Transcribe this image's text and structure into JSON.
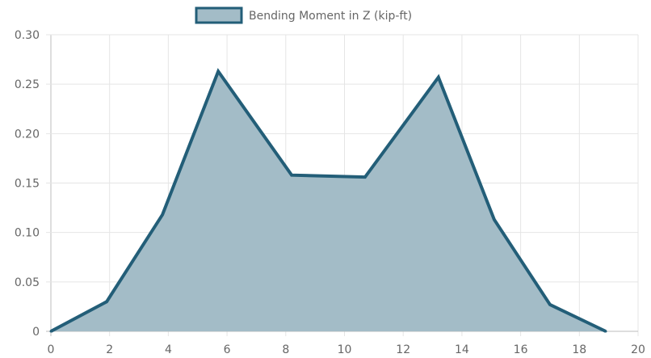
{
  "chart_data": {
    "type": "area",
    "title": "",
    "xlabel": "",
    "ylabel": "",
    "xlim": [
      0,
      20
    ],
    "ylim": [
      0,
      0.3
    ],
    "grid": true,
    "legend_position": "top-center",
    "x_ticks": [
      "0",
      "2",
      "4",
      "6",
      "8",
      "10",
      "12",
      "14",
      "16",
      "18",
      "20"
    ],
    "y_ticks": [
      "0",
      "0.05",
      "0.10",
      "0.15",
      "0.20",
      "0.25",
      "0.30"
    ],
    "series": [
      {
        "name": "Bending Moment in Z (kip-ft)",
        "line_color": "#235e78",
        "fill_color": "#a3bcc7",
        "points": [
          {
            "x": 0,
            "y": 0
          },
          {
            "x": 1.9,
            "y": 0.03
          },
          {
            "x": 3.8,
            "y": 0.118
          },
          {
            "x": 5.7,
            "y": 0.263
          },
          {
            "x": 8.2,
            "y": 0.158
          },
          {
            "x": 10.7,
            "y": 0.156
          },
          {
            "x": 13.2,
            "y": 0.257
          },
          {
            "x": 15.1,
            "y": 0.113
          },
          {
            "x": 17.0,
            "y": 0.027
          },
          {
            "x": 18.9,
            "y": 0
          }
        ]
      }
    ]
  }
}
